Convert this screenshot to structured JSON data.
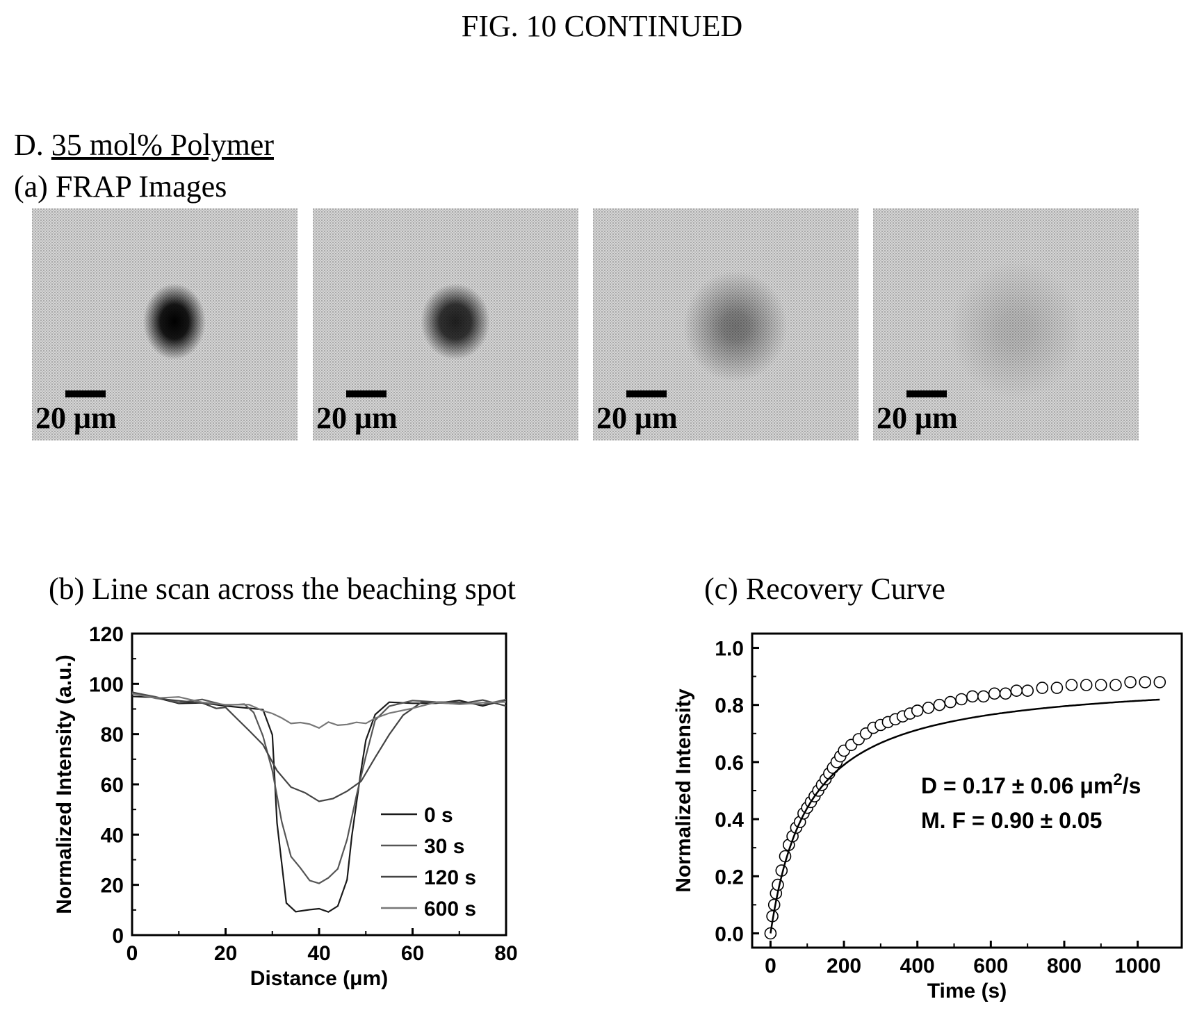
{
  "figure": {
    "title": "FIG. 10 CONTINUED",
    "section_letter": "D.",
    "section_title": "35 mol% Polymer",
    "panel_a_title": "(a) FRAP Images",
    "panel_b_title": "(b) Line scan across the beaching spot",
    "panel_c_title": "(c) Recovery Curve"
  },
  "frap_images": [
    {
      "scale_label": "20 μm",
      "bleach_intensity": 1.0
    },
    {
      "scale_label": "20 μm",
      "bleach_intensity": 0.85
    },
    {
      "scale_label": "20 μm",
      "bleach_intensity": 0.45
    },
    {
      "scale_label": "20 μm",
      "bleach_intensity": 0.15
    }
  ],
  "chart_data": [
    {
      "type": "line",
      "xlabel": "Distance (μm)",
      "ylabel": "Normalized Intensity (a.u.)",
      "xlim": [
        0,
        80
      ],
      "ylim": [
        0,
        120
      ],
      "xticks": [
        0,
        20,
        40,
        60,
        80
      ],
      "yticks": [
        0,
        20,
        40,
        60,
        80,
        100,
        120
      ],
      "legend_position": "bottom-right",
      "series": [
        {
          "name": "0 s",
          "x": [
            0,
            5,
            10,
            15,
            20,
            25,
            28,
            30,
            31,
            33,
            35,
            38,
            40,
            42,
            44,
            46,
            47,
            49,
            50,
            52,
            55,
            60,
            65,
            70,
            75,
            80
          ],
          "y": [
            95,
            94,
            93,
            92,
            91,
            91,
            89,
            80,
            45,
            12,
            10,
            10,
            10,
            10,
            11,
            22,
            40,
            65,
            78,
            88,
            92,
            93,
            92,
            93,
            92,
            93
          ]
        },
        {
          "name": "30 s",
          "x": [
            0,
            5,
            10,
            15,
            20,
            24,
            26,
            28,
            30,
            32,
            34,
            36,
            38,
            40,
            42,
            44,
            46,
            48,
            50,
            52,
            55,
            60,
            65,
            70,
            75,
            80
          ],
          "y": [
            96,
            95,
            93,
            93,
            92,
            92,
            88,
            80,
            65,
            45,
            32,
            26,
            22,
            21,
            22,
            27,
            38,
            55,
            72,
            85,
            91,
            94,
            92,
            93,
            92,
            93
          ]
        },
        {
          "name": "120 s",
          "x": [
            0,
            5,
            10,
            15,
            18,
            20,
            22,
            25,
            28,
            31,
            34,
            37,
            40,
            43,
            46,
            49,
            52,
            55,
            58,
            62,
            66,
            70,
            75,
            80
          ],
          "y": [
            96,
            95,
            93,
            92,
            91,
            90,
            87,
            82,
            75,
            66,
            59,
            56,
            54,
            54,
            57,
            62,
            70,
            80,
            88,
            92,
            93,
            92,
            93,
            92
          ]
        },
        {
          "name": "600 s",
          "x": [
            0,
            5,
            10,
            15,
            20,
            25,
            28,
            30,
            32,
            34,
            36,
            38,
            40,
            42,
            44,
            46,
            48,
            50,
            52,
            55,
            60,
            65,
            70,
            75,
            80
          ],
          "y": [
            96,
            95,
            94,
            93,
            92,
            91,
            90,
            88,
            86,
            85,
            84,
            84,
            83,
            84,
            84,
            84,
            84,
            85,
            86,
            88,
            91,
            92,
            92,
            93,
            92
          ]
        }
      ]
    },
    {
      "type": "scatter",
      "xlabel": "Time (s)",
      "ylabel": "Normalized Intensity",
      "xlim": [
        -50,
        1120
      ],
      "ylim": [
        -0.05,
        1.05
      ],
      "xticks": [
        0,
        200,
        400,
        600,
        800,
        1000
      ],
      "yticks": [
        0.0,
        0.2,
        0.4,
        0.6,
        0.8,
        1.0
      ],
      "annotation_line1": "D = 0.17 ± 0.06 μm",
      "annotation_sup": "2",
      "annotation_line1_suffix": "/s",
      "annotation_line2": "M. F = 0.90 ± 0.05",
      "fit": {
        "plateau": 0.9,
        "half_time_s": 105
      },
      "series": [
        {
          "x": [
            0,
            5,
            10,
            15,
            20,
            30,
            40,
            50,
            60,
            70,
            80,
            90,
            100,
            110,
            120,
            130,
            140,
            150,
            160,
            170,
            180,
            190,
            200,
            220,
            240,
            260,
            280,
            300,
            320,
            340,
            360,
            380,
            400,
            430,
            460,
            490,
            520,
            550,
            580,
            610,
            640,
            670,
            700,
            740,
            780,
            820,
            860,
            900,
            940,
            980,
            1020,
            1060
          ],
          "y": [
            0.0,
            0.06,
            0.1,
            0.14,
            0.17,
            0.22,
            0.27,
            0.31,
            0.34,
            0.37,
            0.39,
            0.42,
            0.44,
            0.46,
            0.48,
            0.5,
            0.52,
            0.54,
            0.56,
            0.58,
            0.6,
            0.62,
            0.64,
            0.66,
            0.68,
            0.7,
            0.72,
            0.73,
            0.74,
            0.75,
            0.76,
            0.77,
            0.78,
            0.79,
            0.8,
            0.81,
            0.82,
            0.83,
            0.83,
            0.84,
            0.84,
            0.85,
            0.85,
            0.86,
            0.86,
            0.87,
            0.87,
            0.87,
            0.87,
            0.88,
            0.88,
            0.88
          ]
        }
      ]
    }
  ]
}
